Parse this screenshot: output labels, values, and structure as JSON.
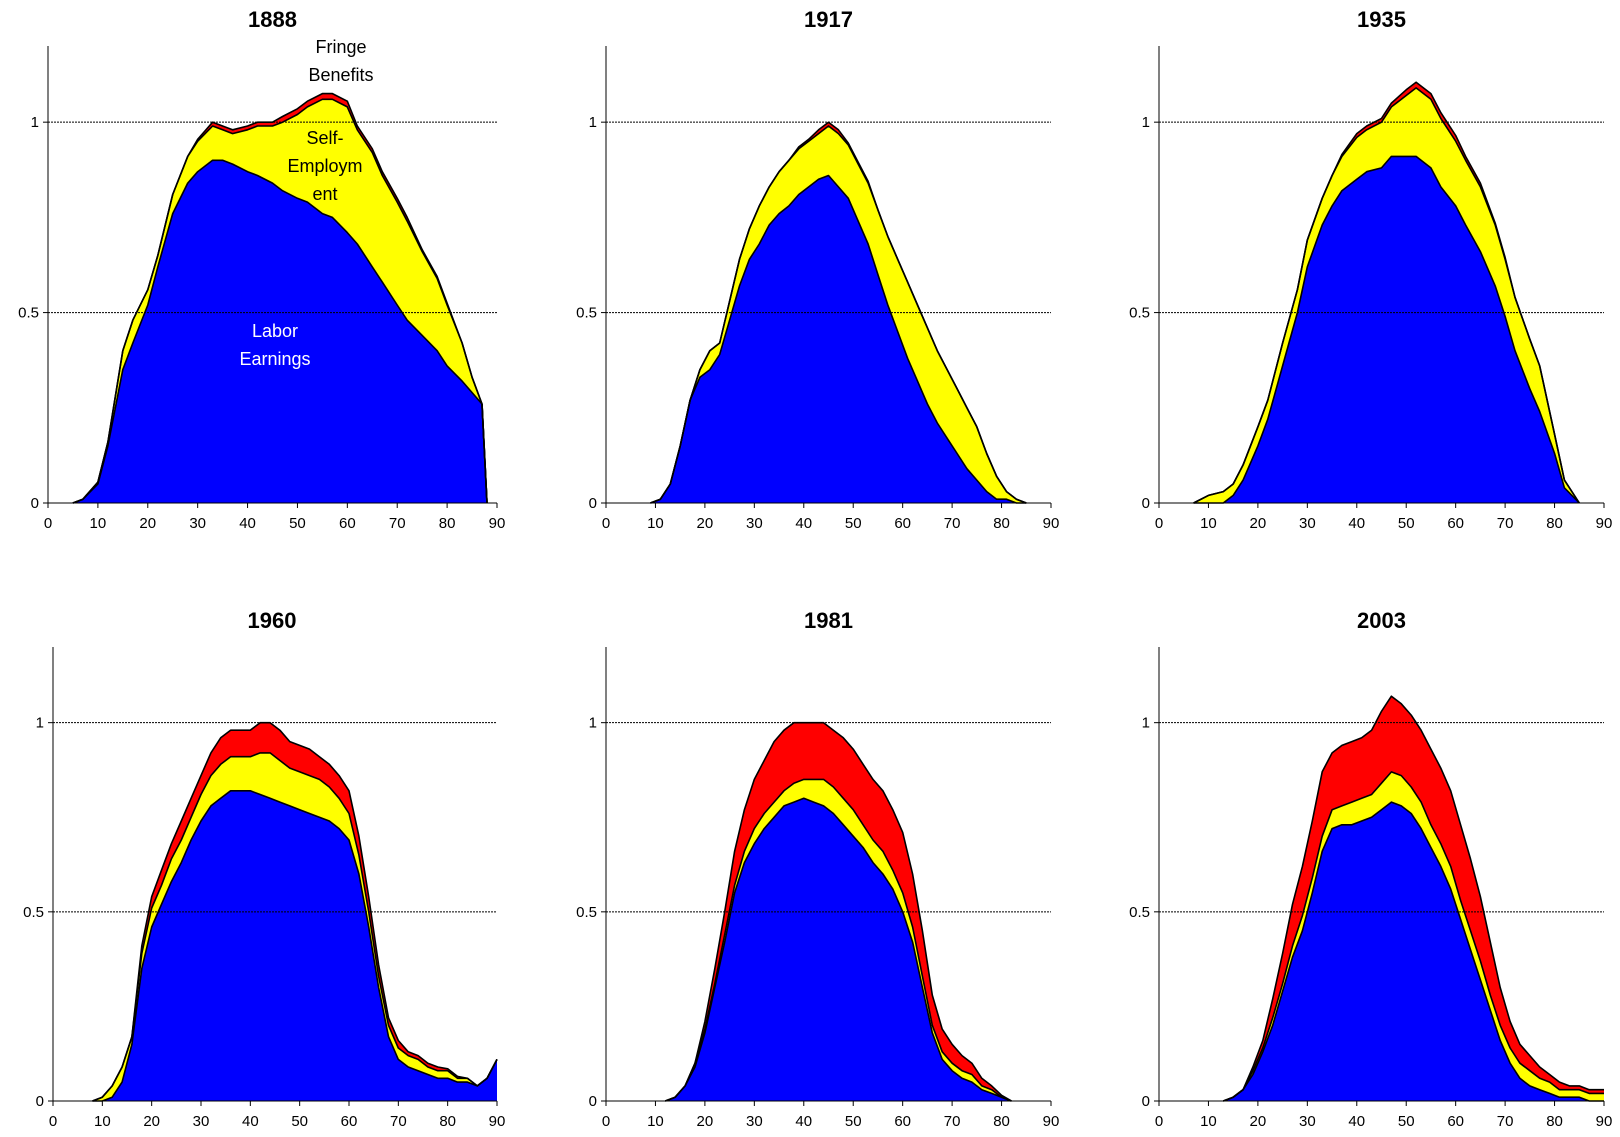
{
  "colors": {
    "labor": "#0000FF",
    "self_employment": "#FFFF00",
    "fringe": "#FF0000",
    "outline": "#000000"
  },
  "chart_data": [
    {
      "type": "area",
      "title": "1888",
      "xlim": [
        0,
        90
      ],
      "ylim": [
        0,
        1.2
      ],
      "xticks": [
        "0",
        "10",
        "20",
        "30",
        "40",
        "50",
        "60",
        "70",
        "80",
        "90"
      ],
      "yticks": [
        "0",
        "0.5",
        "1"
      ],
      "ref_lines": [
        0.5,
        1
      ],
      "annotations": {
        "fringe": [
          "Fringe",
          "Benefits"
        ],
        "self": [
          "Self-",
          "Employm",
          "ent"
        ],
        "labor": [
          "Labor",
          "Earnings"
        ]
      },
      "x": [
        5,
        7,
        10,
        12,
        15,
        17,
        20,
        22,
        25,
        28,
        30,
        33,
        35,
        37,
        40,
        42,
        45,
        47,
        50,
        52,
        55,
        57,
        60,
        62,
        65,
        67,
        70,
        72,
        75,
        78,
        80,
        83,
        85,
        87,
        88
      ],
      "labor": [
        0,
        0.01,
        0.05,
        0.15,
        0.35,
        0.42,
        0.52,
        0.62,
        0.76,
        0.84,
        0.87,
        0.9,
        0.9,
        0.89,
        0.87,
        0.86,
        0.84,
        0.82,
        0.8,
        0.79,
        0.76,
        0.75,
        0.71,
        0.68,
        0.62,
        0.58,
        0.52,
        0.48,
        0.44,
        0.4,
        0.36,
        0.32,
        0.29,
        0.26,
        0.0
      ],
      "self_employment": [
        0,
        0,
        0.005,
        0.01,
        0.05,
        0.06,
        0.04,
        0.03,
        0.05,
        0.07,
        0.08,
        0.09,
        0.08,
        0.08,
        0.11,
        0.13,
        0.15,
        0.18,
        0.22,
        0.25,
        0.3,
        0.31,
        0.33,
        0.3,
        0.3,
        0.28,
        0.27,
        0.26,
        0.22,
        0.19,
        0.16,
        0.1,
        0.04,
        0.0,
        0.0
      ],
      "fringe": [
        0,
        0,
        0,
        0,
        0,
        0,
        0,
        0,
        0,
        0,
        0.005,
        0.01,
        0.01,
        0.01,
        0.01,
        0.01,
        0.01,
        0.015,
        0.015,
        0.015,
        0.015,
        0.015,
        0.015,
        0.01,
        0.01,
        0.01,
        0.01,
        0.01,
        0.005,
        0.005,
        0.005,
        0,
        0,
        0,
        0
      ]
    },
    {
      "type": "area",
      "title": "1917",
      "xlim": [
        0,
        90
      ],
      "ylim": [
        0,
        1.2
      ],
      "xticks": [
        "0",
        "10",
        "20",
        "30",
        "40",
        "50",
        "60",
        "70",
        "80",
        "90"
      ],
      "yticks": [
        "0",
        "0.5",
        "1"
      ],
      "ref_lines": [
        0.5,
        1
      ],
      "x": [
        9,
        11,
        13,
        15,
        17,
        19,
        21,
        23,
        25,
        27,
        29,
        31,
        33,
        35,
        37,
        39,
        41,
        43,
        45,
        47,
        49,
        51,
        53,
        55,
        57,
        59,
        61,
        63,
        65,
        67,
        69,
        71,
        73,
        75,
        77,
        79,
        81,
        83,
        85
      ],
      "labor": [
        0,
        0.01,
        0.05,
        0.15,
        0.27,
        0.33,
        0.35,
        0.39,
        0.48,
        0.57,
        0.64,
        0.68,
        0.73,
        0.76,
        0.78,
        0.81,
        0.83,
        0.85,
        0.86,
        0.83,
        0.8,
        0.74,
        0.68,
        0.6,
        0.52,
        0.45,
        0.38,
        0.32,
        0.26,
        0.21,
        0.17,
        0.13,
        0.09,
        0.06,
        0.03,
        0.01,
        0.01,
        0.0,
        0.0
      ],
      "self_employment": [
        0,
        0,
        0,
        0,
        0,
        0.02,
        0.05,
        0.03,
        0.05,
        0.07,
        0.08,
        0.1,
        0.1,
        0.11,
        0.12,
        0.12,
        0.12,
        0.12,
        0.13,
        0.14,
        0.14,
        0.15,
        0.16,
        0.17,
        0.18,
        0.19,
        0.2,
        0.2,
        0.2,
        0.19,
        0.18,
        0.17,
        0.16,
        0.14,
        0.1,
        0.06,
        0.02,
        0.01,
        0.0
      ],
      "fringe": [
        0,
        0,
        0,
        0,
        0,
        0,
        0,
        0,
        0,
        0,
        0,
        0,
        0,
        0,
        0,
        0.005,
        0.005,
        0.01,
        0.01,
        0.01,
        0.005,
        0.005,
        0.005,
        0,
        0,
        0,
        0,
        0,
        0,
        0,
        0,
        0,
        0,
        0,
        0,
        0,
        0,
        0,
        0
      ]
    },
    {
      "type": "area",
      "title": "1935",
      "xlim": [
        0,
        90
      ],
      "ylim": [
        0,
        1.2
      ],
      "xticks": [
        "0",
        "10",
        "20",
        "30",
        "40",
        "50",
        "60",
        "70",
        "80",
        "90"
      ],
      "yticks": [
        "0",
        "0.5",
        "1"
      ],
      "ref_lines": [
        0.5,
        1
      ],
      "x": [
        7,
        10,
        13,
        15,
        17,
        20,
        22,
        25,
        28,
        30,
        33,
        35,
        37,
        40,
        42,
        45,
        47,
        50,
        52,
        55,
        57,
        60,
        62,
        65,
        68,
        70,
        72,
        75,
        77,
        80,
        82,
        85
      ],
      "labor": [
        0,
        0,
        0,
        0.02,
        0.06,
        0.15,
        0.22,
        0.36,
        0.5,
        0.62,
        0.73,
        0.78,
        0.82,
        0.85,
        0.87,
        0.88,
        0.91,
        0.91,
        0.91,
        0.88,
        0.83,
        0.78,
        0.73,
        0.66,
        0.57,
        0.49,
        0.4,
        0.3,
        0.24,
        0.13,
        0.04,
        0.0
      ],
      "self_employment": [
        0,
        0.02,
        0.03,
        0.03,
        0.04,
        0.05,
        0.05,
        0.06,
        0.06,
        0.07,
        0.07,
        0.08,
        0.09,
        0.11,
        0.11,
        0.12,
        0.13,
        0.16,
        0.18,
        0.18,
        0.18,
        0.17,
        0.17,
        0.17,
        0.16,
        0.15,
        0.14,
        0.13,
        0.12,
        0.05,
        0.02,
        0.0
      ],
      "fringe": [
        0,
        0,
        0,
        0,
        0,
        0,
        0,
        0,
        0,
        0,
        0,
        0,
        0.005,
        0.01,
        0.01,
        0.01,
        0.01,
        0.015,
        0.015,
        0.015,
        0.015,
        0.015,
        0.01,
        0.01,
        0.005,
        0.005,
        0,
        0,
        0,
        0,
        0,
        0
      ]
    },
    {
      "type": "area",
      "title": "1960",
      "xlim": [
        0,
        90
      ],
      "ylim": [
        0,
        1.2
      ],
      "xticks": [
        "0",
        "10",
        "20",
        "30",
        "40",
        "50",
        "60",
        "70",
        "80",
        "90"
      ],
      "yticks": [
        "0",
        "0.5",
        "1"
      ],
      "ref_lines": [
        0.5,
        1
      ],
      "x": [
        8,
        10,
        12,
        14,
        16,
        18,
        20,
        22,
        24,
        26,
        28,
        30,
        32,
        34,
        36,
        38,
        40,
        42,
        44,
        46,
        48,
        50,
        52,
        54,
        56,
        58,
        60,
        62,
        64,
        66,
        68,
        70,
        72,
        74,
        76,
        78,
        80,
        82,
        84,
        86,
        88,
        90
      ],
      "labor": [
        0,
        0,
        0.01,
        0.05,
        0.15,
        0.35,
        0.46,
        0.52,
        0.58,
        0.63,
        0.69,
        0.74,
        0.78,
        0.8,
        0.82,
        0.82,
        0.82,
        0.81,
        0.8,
        0.79,
        0.78,
        0.77,
        0.76,
        0.75,
        0.74,
        0.72,
        0.69,
        0.6,
        0.46,
        0.3,
        0.17,
        0.11,
        0.09,
        0.08,
        0.07,
        0.06,
        0.06,
        0.05,
        0.05,
        0.04,
        0.06,
        0.11
      ],
      "self_employment": [
        0,
        0.01,
        0.03,
        0.04,
        0.02,
        0.04,
        0.05,
        0.05,
        0.06,
        0.06,
        0.06,
        0.07,
        0.08,
        0.09,
        0.09,
        0.09,
        0.09,
        0.11,
        0.12,
        0.11,
        0.1,
        0.1,
        0.1,
        0.1,
        0.09,
        0.08,
        0.07,
        0.05,
        0.04,
        0.03,
        0.03,
        0.03,
        0.03,
        0.03,
        0.02,
        0.02,
        0.02,
        0.01,
        0.01,
        0.0,
        0.0,
        0.0
      ],
      "fringe": [
        0,
        0,
        0,
        0,
        0,
        0.02,
        0.03,
        0.04,
        0.04,
        0.05,
        0.05,
        0.05,
        0.06,
        0.07,
        0.07,
        0.07,
        0.07,
        0.08,
        0.08,
        0.08,
        0.07,
        0.07,
        0.07,
        0.06,
        0.06,
        0.06,
        0.06,
        0.05,
        0.04,
        0.03,
        0.02,
        0.02,
        0.01,
        0.01,
        0.01,
        0.01,
        0.005,
        0.005,
        0,
        0,
        0,
        0
      ]
    },
    {
      "type": "area",
      "title": "1981",
      "xlim": [
        0,
        90
      ],
      "ylim": [
        0,
        1.2
      ],
      "xticks": [
        "0",
        "10",
        "20",
        "30",
        "40",
        "50",
        "60",
        "70",
        "80",
        "90"
      ],
      "yticks": [
        "0",
        "0.5",
        "1"
      ],
      "ref_lines": [
        0.5,
        1
      ],
      "x": [
        12,
        14,
        16,
        18,
        20,
        22,
        24,
        26,
        28,
        30,
        32,
        34,
        36,
        38,
        40,
        42,
        44,
        46,
        48,
        50,
        52,
        54,
        56,
        58,
        60,
        62,
        64,
        66,
        68,
        70,
        72,
        74,
        76,
        78,
        80,
        82
      ],
      "labor": [
        0,
        0.01,
        0.04,
        0.09,
        0.18,
        0.3,
        0.42,
        0.55,
        0.63,
        0.68,
        0.72,
        0.75,
        0.78,
        0.79,
        0.8,
        0.79,
        0.78,
        0.76,
        0.73,
        0.7,
        0.67,
        0.63,
        0.6,
        0.56,
        0.5,
        0.42,
        0.3,
        0.18,
        0.11,
        0.08,
        0.06,
        0.05,
        0.03,
        0.02,
        0.01,
        0.0
      ],
      "self_employment": [
        0,
        0,
        0,
        0.01,
        0.01,
        0.01,
        0.02,
        0.02,
        0.03,
        0.04,
        0.04,
        0.04,
        0.04,
        0.05,
        0.05,
        0.06,
        0.07,
        0.07,
        0.07,
        0.07,
        0.06,
        0.06,
        0.06,
        0.05,
        0.05,
        0.04,
        0.03,
        0.02,
        0.02,
        0.02,
        0.02,
        0.02,
        0.01,
        0.01,
        0.0,
        0.0
      ],
      "fringe": [
        0,
        0,
        0,
        0,
        0.02,
        0.04,
        0.06,
        0.09,
        0.11,
        0.13,
        0.14,
        0.16,
        0.16,
        0.16,
        0.15,
        0.15,
        0.15,
        0.15,
        0.16,
        0.16,
        0.16,
        0.16,
        0.16,
        0.16,
        0.16,
        0.14,
        0.12,
        0.08,
        0.06,
        0.05,
        0.04,
        0.03,
        0.02,
        0.01,
        0.005,
        0.0
      ]
    },
    {
      "type": "area",
      "title": "2003",
      "xlim": [
        0,
        90
      ],
      "ylim": [
        0,
        1.2
      ],
      "xticks": [
        "0",
        "10",
        "20",
        "30",
        "40",
        "50",
        "60",
        "70",
        "80",
        "90"
      ],
      "yticks": [
        "0",
        "0.5",
        "1"
      ],
      "ref_lines": [
        0.5,
        1
      ],
      "x": [
        13,
        15,
        17,
        19,
        21,
        23,
        25,
        27,
        29,
        31,
        33,
        35,
        37,
        39,
        41,
        43,
        45,
        47,
        49,
        51,
        53,
        55,
        57,
        59,
        61,
        63,
        65,
        67,
        69,
        71,
        73,
        75,
        77,
        79,
        81,
        83,
        85,
        87,
        90
      ],
      "labor": [
        0,
        0.01,
        0.03,
        0.07,
        0.13,
        0.2,
        0.29,
        0.38,
        0.45,
        0.55,
        0.66,
        0.72,
        0.73,
        0.73,
        0.74,
        0.75,
        0.77,
        0.79,
        0.78,
        0.76,
        0.72,
        0.67,
        0.62,
        0.56,
        0.48,
        0.4,
        0.32,
        0.24,
        0.16,
        0.1,
        0.06,
        0.04,
        0.03,
        0.02,
        0.01,
        0.01,
        0.01,
        0.0,
        0.0
      ],
      "self_employment": [
        0,
        0,
        0,
        0.01,
        0.01,
        0.02,
        0.02,
        0.03,
        0.04,
        0.04,
        0.04,
        0.05,
        0.05,
        0.06,
        0.06,
        0.06,
        0.07,
        0.08,
        0.08,
        0.07,
        0.07,
        0.06,
        0.06,
        0.06,
        0.05,
        0.05,
        0.05,
        0.04,
        0.04,
        0.04,
        0.04,
        0.04,
        0.03,
        0.03,
        0.02,
        0.02,
        0.02,
        0.02,
        0.02
      ],
      "fringe": [
        0,
        0,
        0,
        0.01,
        0.02,
        0.05,
        0.08,
        0.11,
        0.13,
        0.15,
        0.17,
        0.15,
        0.16,
        0.16,
        0.16,
        0.17,
        0.19,
        0.2,
        0.19,
        0.19,
        0.19,
        0.2,
        0.2,
        0.2,
        0.2,
        0.19,
        0.17,
        0.14,
        0.1,
        0.07,
        0.05,
        0.04,
        0.03,
        0.02,
        0.02,
        0.01,
        0.01,
        0.01,
        0.01
      ]
    }
  ]
}
